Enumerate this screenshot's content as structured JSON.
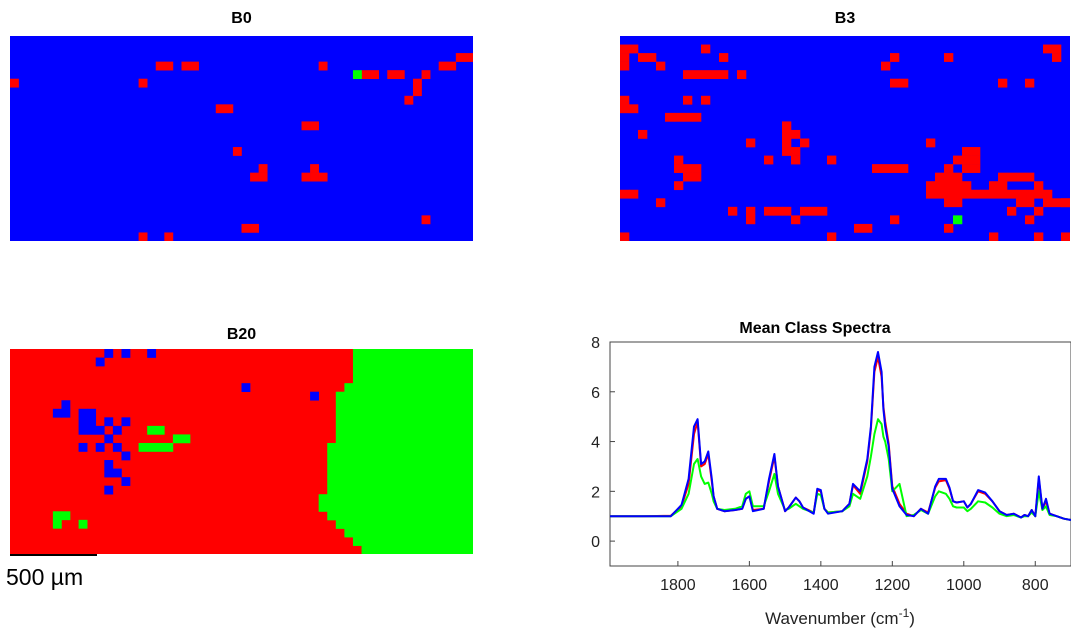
{
  "scale_bar": {
    "label": "500 µm"
  },
  "class_colors": {
    "blue_class": "#0000ff",
    "red_class": "#ff0000",
    "green_class": "#00ff00"
  },
  "maps": [
    {
      "title": "B0",
      "grid": {
        "cols": 54,
        "rows": 24
      },
      "background": "blue",
      "red_cells": [
        [
          17,
          3
        ],
        [
          18,
          3
        ],
        [
          20,
          3
        ],
        [
          21,
          3
        ],
        [
          36,
          3
        ],
        [
          52,
          2
        ],
        [
          53,
          2
        ],
        [
          50,
          3
        ],
        [
          51,
          3
        ],
        [
          41,
          4
        ],
        [
          42,
          4
        ],
        [
          44,
          4
        ],
        [
          45,
          4
        ],
        [
          48,
          4
        ],
        [
          0,
          5
        ],
        [
          15,
          5
        ],
        [
          47,
          5
        ],
        [
          47,
          6
        ],
        [
          46,
          7
        ],
        [
          24,
          8
        ],
        [
          25,
          8
        ],
        [
          34,
          10
        ],
        [
          35,
          10
        ],
        [
          26,
          13
        ],
        [
          29,
          15
        ],
        [
          28,
          16
        ],
        [
          29,
          16
        ],
        [
          35,
          15
        ],
        [
          34,
          16
        ],
        [
          35,
          16
        ],
        [
          36,
          16
        ],
        [
          48,
          21
        ],
        [
          27,
          22
        ],
        [
          28,
          22
        ],
        [
          15,
          23
        ],
        [
          18,
          23
        ]
      ],
      "green_cells": [
        [
          40,
          4
        ]
      ]
    },
    {
      "title": "B3",
      "grid": {
        "cols": 50,
        "rows": 24
      },
      "background": "blue",
      "red_cells": [
        [
          0,
          1
        ],
        [
          1,
          1
        ],
        [
          0,
          2
        ],
        [
          2,
          2
        ],
        [
          3,
          2
        ],
        [
          4,
          3
        ],
        [
          0,
          3
        ],
        [
          9,
          1
        ],
        [
          11,
          2
        ],
        [
          11,
          4
        ],
        [
          7,
          4
        ],
        [
          8,
          4
        ],
        [
          9,
          4
        ],
        [
          10,
          4
        ],
        [
          13,
          4
        ],
        [
          0,
          7
        ],
        [
          0,
          8
        ],
        [
          1,
          8
        ],
        [
          7,
          7
        ],
        [
          9,
          7
        ],
        [
          5,
          9
        ],
        [
          6,
          9
        ],
        [
          7,
          9
        ],
        [
          8,
          9
        ],
        [
          2,
          11
        ],
        [
          14,
          12
        ],
        [
          18,
          10
        ],
        [
          18,
          11
        ],
        [
          19,
          11
        ],
        [
          18,
          12
        ],
        [
          20,
          12
        ],
        [
          18,
          13
        ],
        [
          19,
          13
        ],
        [
          19,
          14
        ],
        [
          16,
          14
        ],
        [
          23,
          14
        ],
        [
          6,
          14
        ],
        [
          6,
          15
        ],
        [
          7,
          15
        ],
        [
          8,
          15
        ],
        [
          7,
          16
        ],
        [
          8,
          16
        ],
        [
          6,
          17
        ],
        [
          28,
          15
        ],
        [
          29,
          15
        ],
        [
          30,
          15
        ],
        [
          31,
          15
        ],
        [
          38,
          13
        ],
        [
          39,
          13
        ],
        [
          37,
          14
        ],
        [
          38,
          14
        ],
        [
          39,
          14
        ],
        [
          36,
          15
        ],
        [
          38,
          15
        ],
        [
          39,
          15
        ],
        [
          35,
          16
        ],
        [
          36,
          16
        ],
        [
          37,
          16
        ],
        [
          34,
          17
        ],
        [
          35,
          17
        ],
        [
          36,
          17
        ],
        [
          37,
          17
        ],
        [
          38,
          17
        ],
        [
          34,
          18
        ],
        [
          35,
          18
        ],
        [
          36,
          18
        ],
        [
          37,
          18
        ],
        [
          38,
          18
        ],
        [
          39,
          18
        ],
        [
          36,
          19
        ],
        [
          37,
          19
        ],
        [
          42,
          16
        ],
        [
          43,
          16
        ],
        [
          44,
          16
        ],
        [
          45,
          16
        ],
        [
          41,
          17
        ],
        [
          42,
          17
        ],
        [
          46,
          17
        ],
        [
          40,
          18
        ],
        [
          41,
          18
        ],
        [
          42,
          18
        ],
        [
          43,
          18
        ],
        [
          44,
          18
        ],
        [
          45,
          18
        ],
        [
          46,
          18
        ],
        [
          47,
          18
        ],
        [
          44,
          19
        ],
        [
          45,
          19
        ],
        [
          47,
          19
        ],
        [
          48,
          19
        ],
        [
          49,
          19
        ],
        [
          46,
          20
        ],
        [
          49,
          19
        ],
        [
          43,
          20
        ],
        [
          45,
          21
        ],
        [
          0,
          18
        ],
        [
          1,
          18
        ],
        [
          4,
          19
        ],
        [
          20,
          20
        ],
        [
          21,
          20
        ],
        [
          22,
          20
        ],
        [
          19,
          21
        ],
        [
          12,
          20
        ],
        [
          14,
          20
        ],
        [
          14,
          21
        ],
        [
          16,
          20
        ],
        [
          17,
          20
        ],
        [
          18,
          20
        ],
        [
          26,
          22
        ],
        [
          27,
          22
        ],
        [
          23,
          23
        ],
        [
          30,
          21
        ],
        [
          36,
          22
        ],
        [
          0,
          23
        ],
        [
          41,
          23
        ],
        [
          46,
          23
        ],
        [
          49,
          23
        ],
        [
          47,
          1
        ],
        [
          48,
          1
        ],
        [
          48,
          2
        ],
        [
          29,
          3
        ],
        [
          30,
          2
        ],
        [
          30,
          5
        ],
        [
          31,
          5
        ],
        [
          34,
          12
        ],
        [
          42,
          5
        ],
        [
          45,
          5
        ],
        [
          36,
          2
        ]
      ],
      "green_cells": [
        [
          37,
          21
        ]
      ]
    },
    {
      "title": "B20",
      "grid": {
        "cols": 54,
        "rows": 24
      },
      "background": "red",
      "blue_cells": [
        [
          11,
          0
        ],
        [
          13,
          0
        ],
        [
          16,
          0
        ],
        [
          10,
          1
        ],
        [
          27,
          4
        ],
        [
          35,
          5
        ],
        [
          6,
          6
        ],
        [
          5,
          7
        ],
        [
          6,
          7
        ],
        [
          8,
          7
        ],
        [
          9,
          7
        ],
        [
          8,
          8
        ],
        [
          9,
          8
        ],
        [
          11,
          8
        ],
        [
          13,
          8
        ],
        [
          8,
          9
        ],
        [
          9,
          9
        ],
        [
          10,
          9
        ],
        [
          12,
          9
        ],
        [
          11,
          10
        ],
        [
          8,
          11
        ],
        [
          10,
          11
        ],
        [
          12,
          11
        ],
        [
          11,
          13
        ],
        [
          13,
          12
        ],
        [
          11,
          14
        ],
        [
          12,
          14
        ],
        [
          13,
          15
        ],
        [
          11,
          16
        ]
      ],
      "green_cells": [
        [
          16,
          9
        ],
        [
          17,
          9
        ],
        [
          19,
          10
        ],
        [
          20,
          10
        ],
        [
          15,
          11
        ],
        [
          16,
          11
        ],
        [
          17,
          11
        ],
        [
          18,
          11
        ],
        [
          5,
          19
        ],
        [
          6,
          19
        ],
        [
          5,
          20
        ],
        [
          8,
          20
        ]
      ],
      "green_band_left_cols_by_row": [
        40,
        40,
        40,
        40,
        39,
        38,
        38,
        38,
        38,
        38,
        38,
        37,
        37,
        37,
        37,
        37,
        37,
        36,
        36,
        37,
        38,
        39,
        40,
        41
      ]
    }
  ],
  "chart_data": {
    "type": "line",
    "title": "Mean Class Spectra",
    "xlabel": "Wavenumber (cm",
    "xlabel_sup": "-1",
    "xlabel_close": ")",
    "ylabel": "",
    "xlim": [
      1990,
      700
    ],
    "x_reversed": true,
    "ylim": [
      -1,
      8
    ],
    "xticks": [
      1800,
      1600,
      1400,
      1200,
      1000,
      800
    ],
    "yticks": [
      0,
      2,
      4,
      6,
      8
    ],
    "grid": false,
    "legend": "none",
    "series": [
      {
        "color": "red",
        "x": [
          1990,
          1900,
          1820,
          1790,
          1770,
          1755,
          1745,
          1735,
          1725,
          1715,
          1705,
          1700,
          1690,
          1670,
          1640,
          1620,
          1610,
          1600,
          1590,
          1560,
          1545,
          1530,
          1520,
          1500,
          1490,
          1470,
          1460,
          1450,
          1420,
          1410,
          1400,
          1390,
          1380,
          1340,
          1320,
          1310,
          1290,
          1270,
          1260,
          1250,
          1240,
          1230,
          1225,
          1220,
          1210,
          1200,
          1180,
          1160,
          1140,
          1120,
          1100,
          1080,
          1070,
          1050,
          1040,
          1030,
          1020,
          1000,
          990,
          980,
          960,
          940,
          920,
          900,
          880,
          860,
          840,
          830,
          820,
          810,
          800,
          790,
          780,
          770,
          760,
          740,
          720,
          700
        ],
        "y": [
          1.0,
          1.0,
          1.02,
          1.4,
          2.3,
          4.3,
          4.8,
          3.0,
          3.1,
          3.5,
          2.4,
          1.8,
          1.3,
          1.2,
          1.25,
          1.3,
          1.7,
          1.8,
          1.25,
          1.3,
          2.4,
          3.4,
          2.2,
          1.2,
          1.35,
          1.75,
          1.6,
          1.35,
          1.15,
          2.05,
          2.0,
          1.3,
          1.15,
          1.2,
          1.5,
          2.25,
          1.9,
          3.2,
          4.5,
          6.8,
          7.4,
          6.6,
          5.4,
          4.8,
          3.9,
          2.2,
          1.5,
          1.1,
          1.0,
          1.3,
          1.15,
          2.15,
          2.4,
          2.45,
          2.1,
          1.6,
          1.55,
          1.6,
          1.35,
          1.5,
          2.0,
          1.9,
          1.6,
          1.2,
          1.05,
          1.1,
          0.95,
          1.05,
          1.0,
          1.25,
          1.0,
          2.5,
          1.3,
          1.6,
          1.1,
          1.0,
          0.9,
          0.85
        ]
      },
      {
        "color": "green",
        "x": [
          1990,
          1900,
          1820,
          1790,
          1770,
          1755,
          1745,
          1735,
          1725,
          1715,
          1705,
          1700,
          1690,
          1670,
          1640,
          1620,
          1610,
          1600,
          1590,
          1560,
          1545,
          1530,
          1520,
          1500,
          1490,
          1470,
          1460,
          1450,
          1420,
          1410,
          1400,
          1390,
          1380,
          1340,
          1320,
          1310,
          1290,
          1270,
          1260,
          1250,
          1240,
          1230,
          1225,
          1220,
          1210,
          1200,
          1180,
          1160,
          1140,
          1120,
          1100,
          1080,
          1070,
          1050,
          1040,
          1030,
          1020,
          1000,
          990,
          980,
          960,
          940,
          920,
          900,
          880,
          860,
          840,
          830,
          820,
          810,
          800,
          790,
          780,
          770,
          760,
          740,
          720,
          700
        ],
        "y": [
          1.0,
          1.0,
          1.0,
          1.3,
          1.9,
          3.1,
          3.3,
          2.6,
          2.3,
          2.35,
          1.9,
          1.6,
          1.3,
          1.25,
          1.3,
          1.4,
          1.9,
          2.0,
          1.4,
          1.4,
          2.0,
          2.7,
          1.9,
          1.25,
          1.3,
          1.5,
          1.4,
          1.3,
          1.15,
          1.9,
          1.85,
          1.3,
          1.15,
          1.2,
          1.4,
          1.9,
          1.7,
          2.6,
          3.4,
          4.3,
          4.9,
          4.7,
          4.2,
          4.0,
          3.3,
          2.0,
          2.3,
          1.0,
          1.05,
          1.25,
          1.1,
          1.8,
          2.0,
          1.9,
          1.7,
          1.4,
          1.35,
          1.35,
          1.2,
          1.3,
          1.6,
          1.55,
          1.35,
          1.1,
          1.0,
          1.05,
          0.95,
          1.0,
          1.0,
          1.15,
          1.0,
          2.0,
          1.25,
          1.4,
          1.05,
          1.0,
          0.9,
          0.85
        ]
      },
      {
        "color": "blue",
        "x": [
          1990,
          1900,
          1820,
          1790,
          1770,
          1755,
          1745,
          1735,
          1725,
          1715,
          1705,
          1700,
          1690,
          1670,
          1640,
          1620,
          1610,
          1600,
          1590,
          1560,
          1545,
          1530,
          1520,
          1500,
          1490,
          1470,
          1460,
          1450,
          1420,
          1410,
          1400,
          1390,
          1380,
          1340,
          1320,
          1310,
          1290,
          1270,
          1260,
          1250,
          1240,
          1230,
          1225,
          1220,
          1210,
          1200,
          1180,
          1160,
          1140,
          1120,
          1100,
          1080,
          1070,
          1050,
          1040,
          1030,
          1020,
          1000,
          990,
          980,
          960,
          940,
          920,
          900,
          880,
          860,
          840,
          830,
          820,
          810,
          800,
          790,
          780,
          770,
          760,
          740,
          720,
          700
        ],
        "y": [
          1.0,
          1.0,
          1.0,
          1.45,
          2.5,
          4.6,
          4.9,
          3.1,
          3.2,
          3.6,
          2.5,
          1.8,
          1.3,
          1.2,
          1.25,
          1.3,
          1.7,
          1.8,
          1.2,
          1.3,
          2.5,
          3.5,
          2.2,
          1.2,
          1.35,
          1.75,
          1.6,
          1.35,
          1.1,
          2.1,
          2.05,
          1.3,
          1.1,
          1.2,
          1.5,
          2.3,
          2.0,
          3.3,
          4.6,
          7.0,
          7.6,
          6.8,
          5.3,
          4.6,
          3.8,
          2.1,
          1.4,
          1.05,
          1.0,
          1.3,
          1.1,
          2.2,
          2.5,
          2.5,
          2.15,
          1.6,
          1.55,
          1.6,
          1.35,
          1.5,
          2.05,
          1.95,
          1.6,
          1.2,
          1.05,
          1.1,
          0.95,
          1.05,
          1.0,
          1.25,
          1.0,
          2.6,
          1.3,
          1.7,
          1.1,
          1.0,
          0.9,
          0.85
        ]
      }
    ]
  }
}
